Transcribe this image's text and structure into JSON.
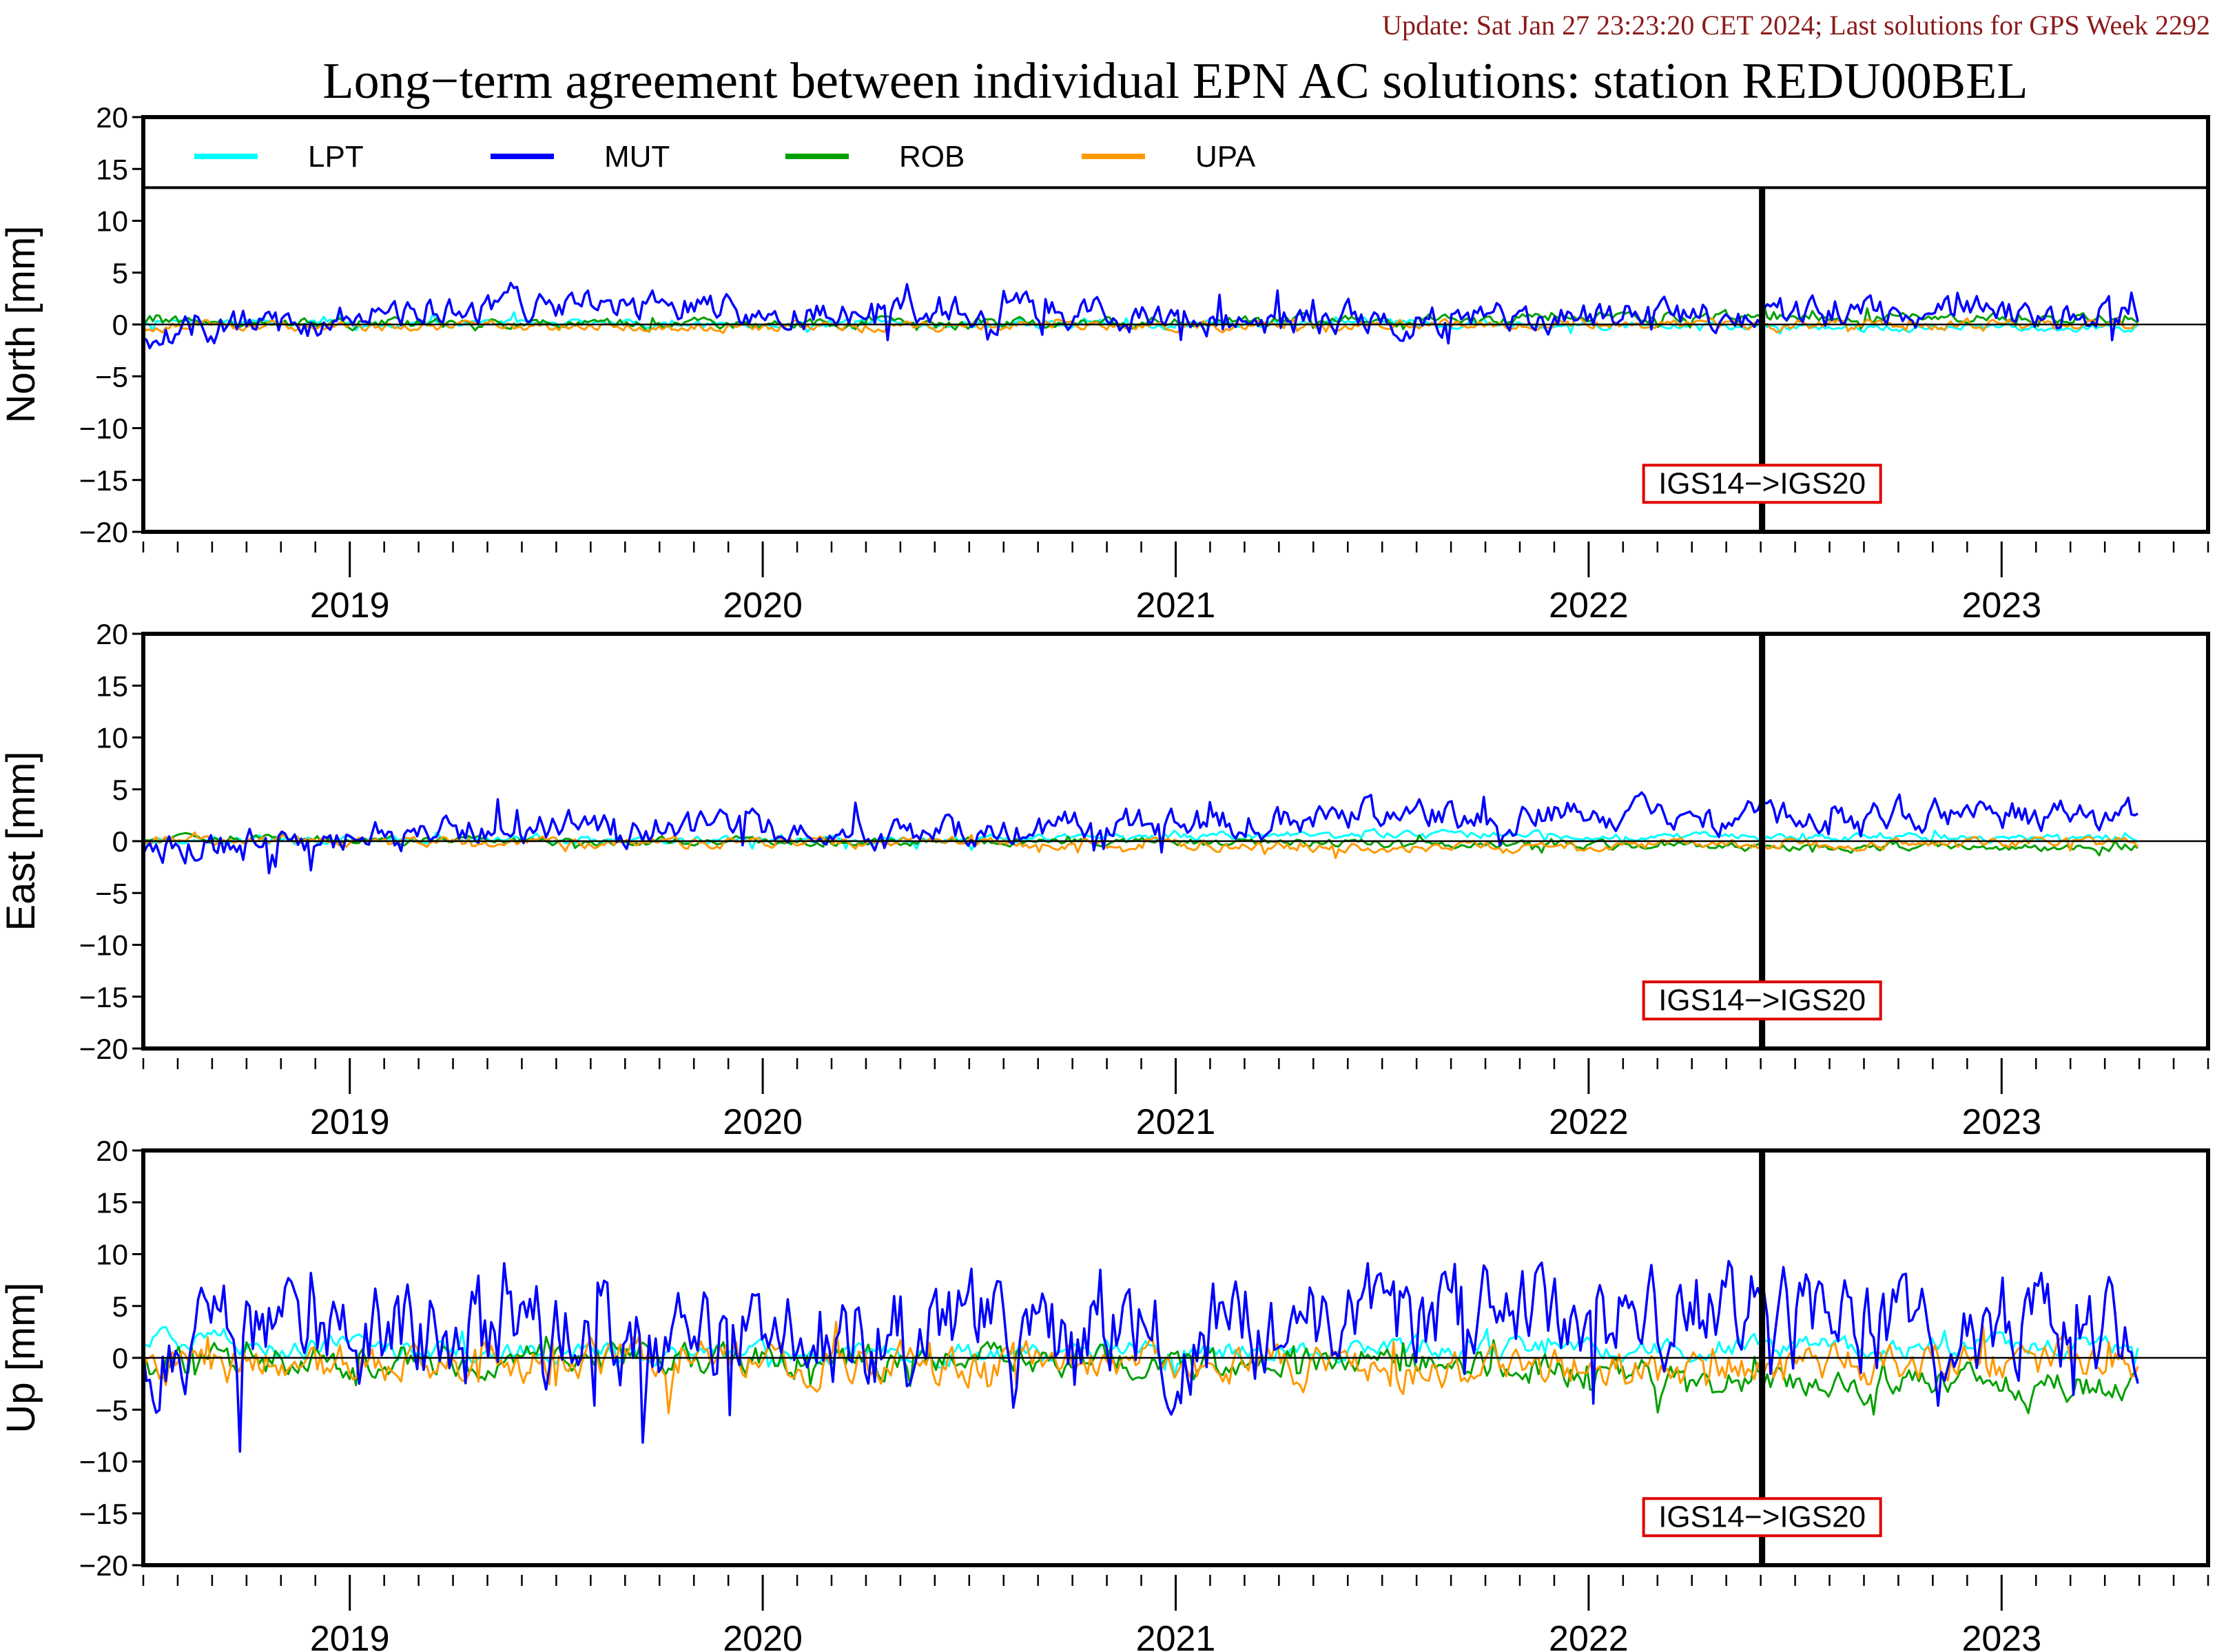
{
  "header": {
    "update": "Update: Sat Jan 27 23:23:20 CET 2024; Last solutions for GPS Week 2292",
    "title": "Long−term agreement between individual EPN AC solutions: station REDU00BEL"
  },
  "colors": {
    "LPT": "#00ffff",
    "MUT": "#0000ff",
    "ROB": "#00a000",
    "UPA": "#ff9900",
    "annotation_border": "#e00000",
    "update_text": "#8b1a1a"
  },
  "legend": [
    "LPT",
    "MUT",
    "ROB",
    "UPA"
  ],
  "annotation": "IGS14−>IGS20",
  "chart_data": [
    {
      "type": "line",
      "ylabel": "North [mm]",
      "ylim": [
        -20,
        20
      ],
      "yticks": [
        20,
        15,
        10,
        5,
        0,
        -5,
        -10,
        -15,
        -20
      ],
      "xlim": [
        2018.5,
        2023.5
      ],
      "xtick_labels": [
        "2019",
        "2020",
        "2021",
        "2022",
        "2023"
      ],
      "frame_change_epoch": 2022.42,
      "legend_position": "top",
      "series": [
        {
          "name": "LPT",
          "approx_level_by_year": {
            "2019": 0.2,
            "2020": 0.1,
            "2021": 0.0,
            "2022": 0.2,
            "2023": -0.3
          },
          "approx_scatter": 0.3
        },
        {
          "name": "MUT",
          "approx_level_by_year": {
            "2019": -0.7,
            "2020": 2.0,
            "2021": 1.2,
            "2022": 0.3,
            "2023": 1.0
          },
          "approx_scatter": 1.2
        },
        {
          "name": "ROB",
          "approx_level_by_year": {
            "2019": 0.2,
            "2020": 0.0,
            "2021": 0.0,
            "2022": 0.5,
            "2023": 0.7
          },
          "approx_scatter": 0.4
        },
        {
          "name": "UPA",
          "approx_level_by_year": {
            "2019": -0.1,
            "2020": -0.2,
            "2021": -0.2,
            "2022": 0.0,
            "2023": 0.0
          },
          "approx_scatter": 0.4
        }
      ]
    },
    {
      "type": "line",
      "ylabel": "East [mm]",
      "ylim": [
        -20,
        20
      ],
      "yticks": [
        20,
        15,
        10,
        5,
        0,
        -5,
        -10,
        -15,
        -20
      ],
      "xlim": [
        2018.5,
        2023.5
      ],
      "xtick_labels": [
        "2019",
        "2020",
        "2021",
        "2022",
        "2023"
      ],
      "frame_change_epoch": 2022.42,
      "series": [
        {
          "name": "LPT",
          "approx_level_by_year": {
            "2019": 0.1,
            "2020": 0.1,
            "2021": 0.1,
            "2022": 0.8,
            "2023": 0.3
          },
          "approx_scatter": 0.3
        },
        {
          "name": "MUT",
          "approx_level_by_year": {
            "2019": -0.8,
            "2020": 1.5,
            "2021": 1.0,
            "2022": 2.5,
            "2023": 2.5
          },
          "approx_scatter": 1.2
        },
        {
          "name": "ROB",
          "approx_level_by_year": {
            "2019": 0.3,
            "2020": 0.0,
            "2021": 0.0,
            "2022": -0.2,
            "2023": -0.6
          },
          "approx_scatter": 0.3
        },
        {
          "name": "UPA",
          "approx_level_by_year": {
            "2019": 0.0,
            "2020": -0.2,
            "2021": -0.1,
            "2022": -0.7,
            "2023": -0.2
          },
          "approx_scatter": 0.4
        }
      ]
    },
    {
      "type": "line",
      "ylabel": "Up [mm]",
      "ylim": [
        -20,
        20
      ],
      "yticks": [
        20,
        15,
        10,
        5,
        0,
        -5,
        -10,
        -15,
        -20
      ],
      "xlim": [
        2018.5,
        2023.5
      ],
      "xtick_labels": [
        "2019",
        "2020",
        "2021",
        "2022",
        "2023"
      ],
      "frame_change_epoch": 2022.42,
      "series": [
        {
          "name": "LPT",
          "approx_level_by_year": {
            "2019": 1.5,
            "2020": 0.5,
            "2021": 0.3,
            "2022": 1.0,
            "2023": 1.0
          },
          "approx_scatter": 0.8
        },
        {
          "name": "MUT",
          "approx_level_by_year": {
            "2019": 1.5,
            "2020": 2.5,
            "2021": 2.0,
            "2022": 4.0,
            "2023": 4.0
          },
          "approx_scatter": 4.0
        },
        {
          "name": "ROB",
          "approx_level_by_year": {
            "2019": -0.5,
            "2020": 0.0,
            "2021": 0.0,
            "2022": -0.5,
            "2023": -2.5
          },
          "approx_scatter": 1.2
        },
        {
          "name": "UPA",
          "approx_level_by_year": {
            "2019": -1.0,
            "2020": -0.5,
            "2021": -0.3,
            "2022": -1.0,
            "2023": -0.5
          },
          "approx_scatter": 1.5
        }
      ]
    }
  ]
}
